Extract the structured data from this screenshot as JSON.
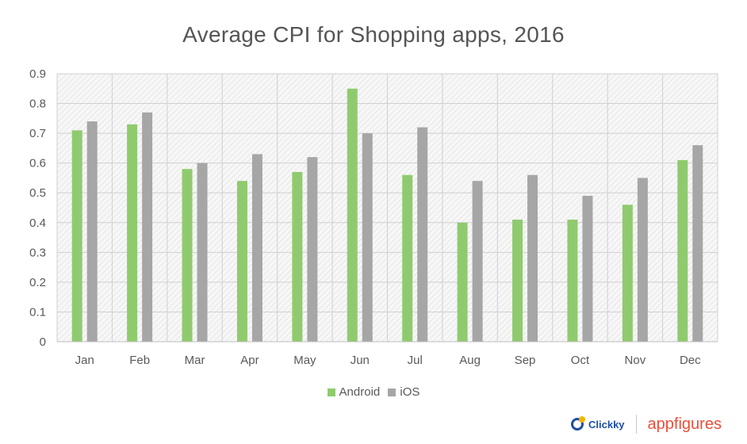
{
  "chart_data": {
    "type": "bar",
    "title": "Average CPI for Shopping apps, 2016",
    "categories": [
      "Jan",
      "Feb",
      "Mar",
      "Apr",
      "May",
      "Jun",
      "Jul",
      "Aug",
      "Sep",
      "Oct",
      "Nov",
      "Dec"
    ],
    "series": [
      {
        "name": "Android",
        "color": "#8fcb6e",
        "values": [
          0.71,
          0.73,
          0.58,
          0.54,
          0.57,
          0.85,
          0.56,
          0.4,
          0.41,
          0.41,
          0.46,
          0.61
        ]
      },
      {
        "name": "iOS",
        "color": "#a6a6a6",
        "values": [
          0.74,
          0.77,
          0.6,
          0.63,
          0.62,
          0.7,
          0.72,
          0.54,
          0.56,
          0.49,
          0.55,
          0.66
        ]
      }
    ],
    "y_ticks": [
      "0",
      "0.1",
      "0.2",
      "0.3",
      "0.4",
      "0.5",
      "0.6",
      "0.7",
      "0.8",
      "0.9"
    ],
    "ylim": [
      0,
      0.9
    ],
    "grid": true,
    "legend_position": "bottom"
  },
  "branding": {
    "logo_left": "Clickky",
    "logo_right": "appfigures"
  }
}
